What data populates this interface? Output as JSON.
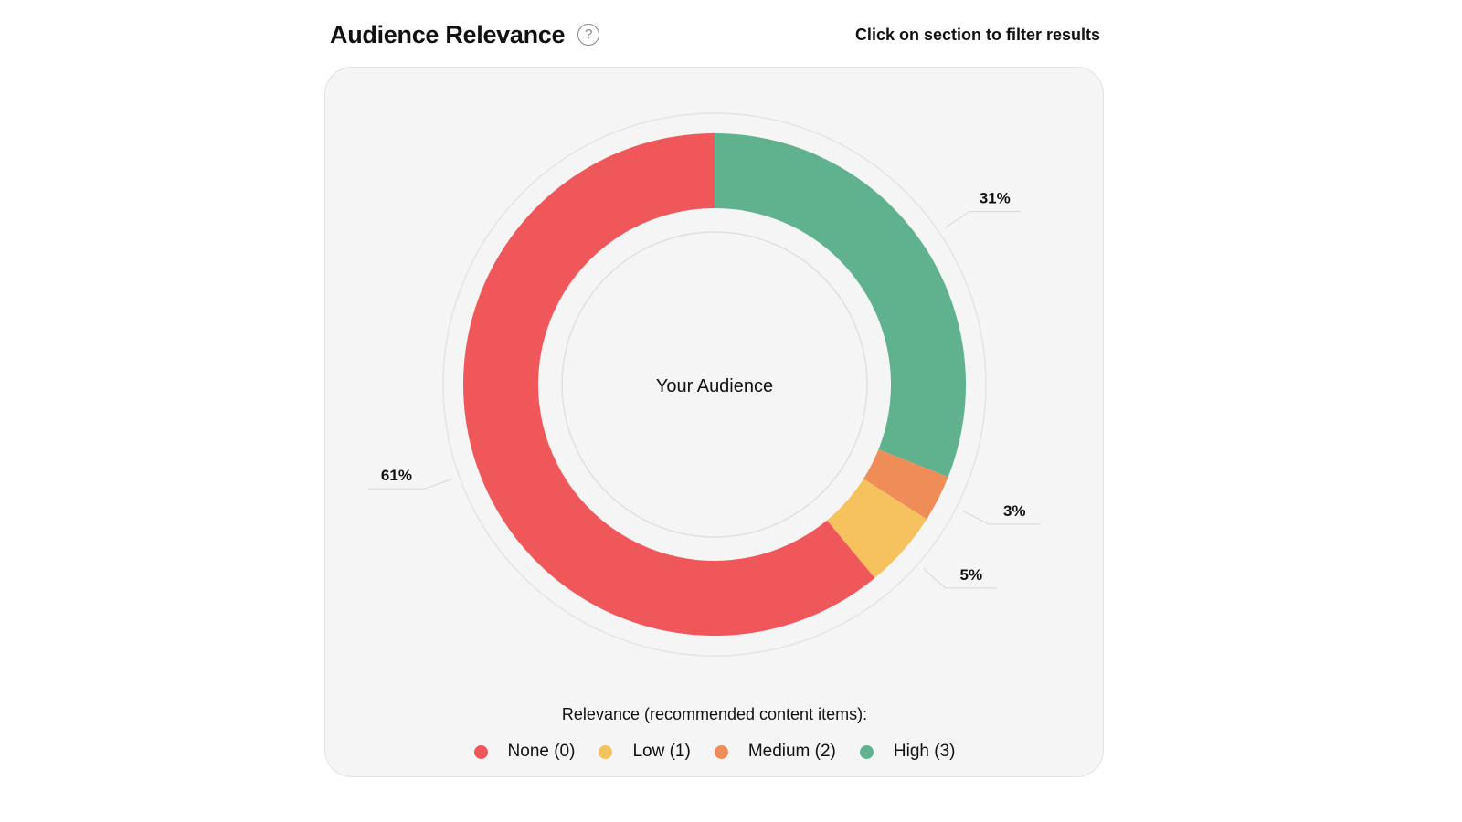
{
  "header": {
    "title": "Audience Relevance",
    "help_icon": "question-circle-icon",
    "help_glyph": "?",
    "hint": "Click on section to filter results"
  },
  "chart_data": {
    "type": "pie",
    "variant": "donut",
    "center_label": "Your Audience",
    "slices": [
      {
        "name": "High (3)",
        "value": 31,
        "label": "31%",
        "color": "#60B28E"
      },
      {
        "name": "Medium (2)",
        "value": 3,
        "label": "3%",
        "color": "#F08C58"
      },
      {
        "name": "Low (1)",
        "value": 5,
        "label": "5%",
        "color": "#F5C25E"
      },
      {
        "name": "None (0)",
        "value": 61,
        "label": "61%",
        "color": "#F0575A"
      }
    ],
    "legend_title": "Relevance (recommended content items):",
    "legend": [
      {
        "label": "None (0)",
        "color": "#F0575A"
      },
      {
        "label": "Low (1)",
        "color": "#F5C25E"
      },
      {
        "label": "Medium (2)",
        "color": "#F08C58"
      },
      {
        "label": "High (3)",
        "color": "#60B28E"
      }
    ],
    "legend_placement": "bottom"
  }
}
